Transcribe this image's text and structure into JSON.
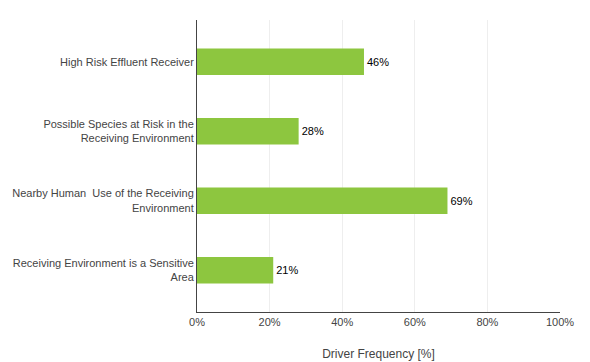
{
  "chart_data": {
    "type": "bar",
    "orientation": "horizontal",
    "categories": [
      "Receiving Environment is a Sensitive\nArea",
      "Nearby Human  Use of the Receiving\nEnvironment",
      "Possible Species at Risk in the\nReceiving Environment",
      "High Risk Effluent Receiver"
    ],
    "values": [
      21,
      69,
      28,
      46
    ],
    "value_labels": [
      "21%",
      "69%",
      "28%",
      "46%"
    ],
    "data_labels": true,
    "color": "#8DC63F",
    "xlabel": "Driver Frequency [%]",
    "xlim": [
      0,
      100
    ],
    "xticks": [
      {
        "value": 0,
        "label": "0%"
      },
      {
        "value": 20,
        "label": "20%"
      },
      {
        "value": 40,
        "label": "40%"
      },
      {
        "value": 60,
        "label": "60%"
      },
      {
        "value": 80,
        "label": "80%"
      },
      {
        "value": 100,
        "label": "100%"
      }
    ],
    "grid": true
  }
}
